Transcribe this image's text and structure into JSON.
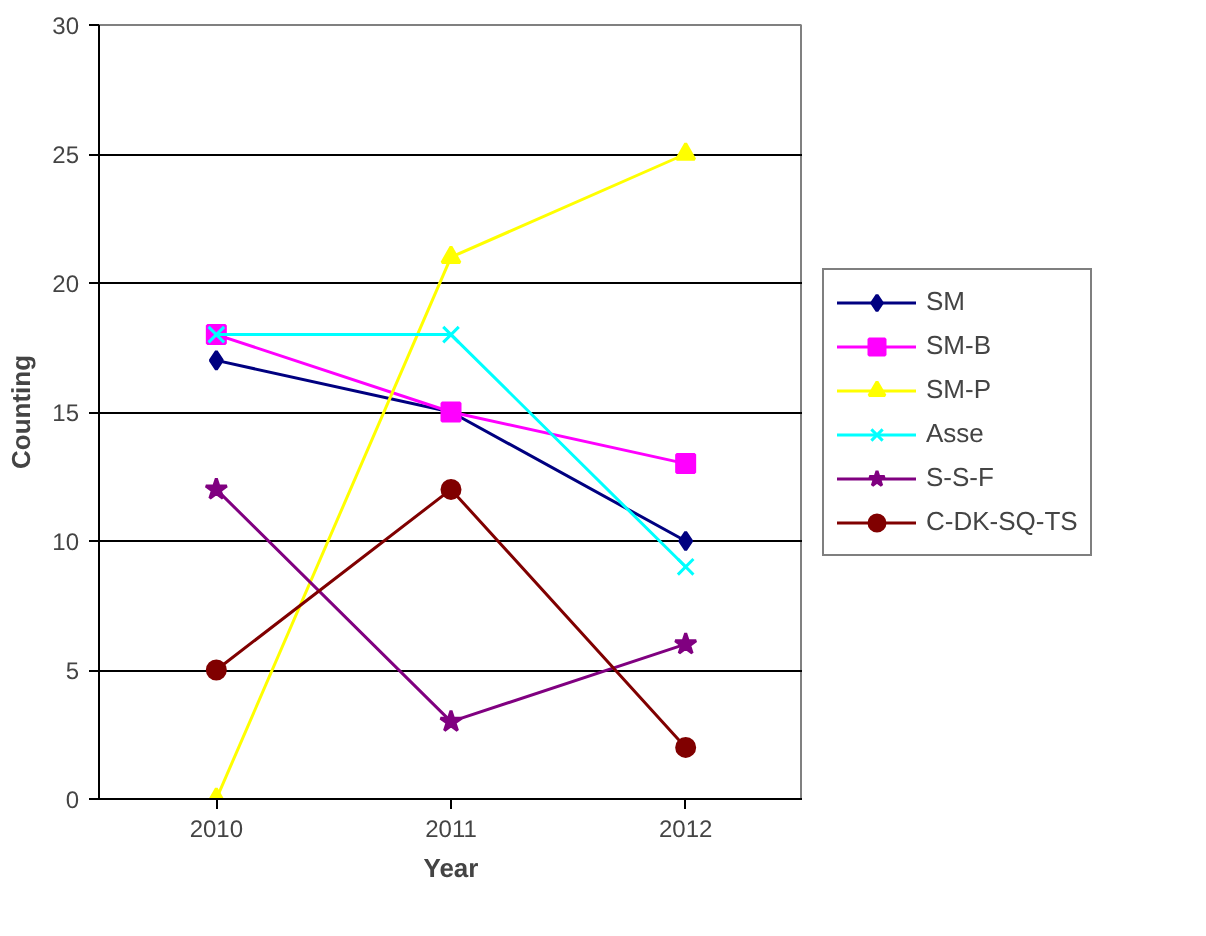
{
  "chart_data": {
    "type": "line",
    "xlabel": "Year",
    "ylabel": "Counting",
    "categories": [
      "2010",
      "2011",
      "2012"
    ],
    "ylim": [
      0,
      30
    ],
    "yticks": [
      0,
      5,
      10,
      15,
      20,
      25,
      30
    ],
    "grid": "y",
    "legend": "right",
    "line_style": "solid",
    "series": [
      {
        "name": "SM",
        "color": "#000080",
        "marker": "diamond",
        "values": [
          17,
          15,
          10
        ]
      },
      {
        "name": "SM-B",
        "color": "#ff00ff",
        "marker": "square",
        "values": [
          18,
          15,
          13
        ]
      },
      {
        "name": "SM-P",
        "color": "#ffff00",
        "marker": "triangle",
        "values": [
          0,
          21,
          25
        ]
      },
      {
        "name": "Asse",
        "color": "#00ffff",
        "marker": "cross",
        "values": [
          18,
          18,
          9
        ]
      },
      {
        "name": "S-S-F",
        "color": "#800080",
        "marker": "star",
        "values": [
          12,
          3,
          6
        ]
      },
      {
        "name": "C-DK-SQ-TS",
        "color": "#800000",
        "marker": "circle",
        "values": [
          5,
          12,
          2
        ]
      }
    ]
  }
}
